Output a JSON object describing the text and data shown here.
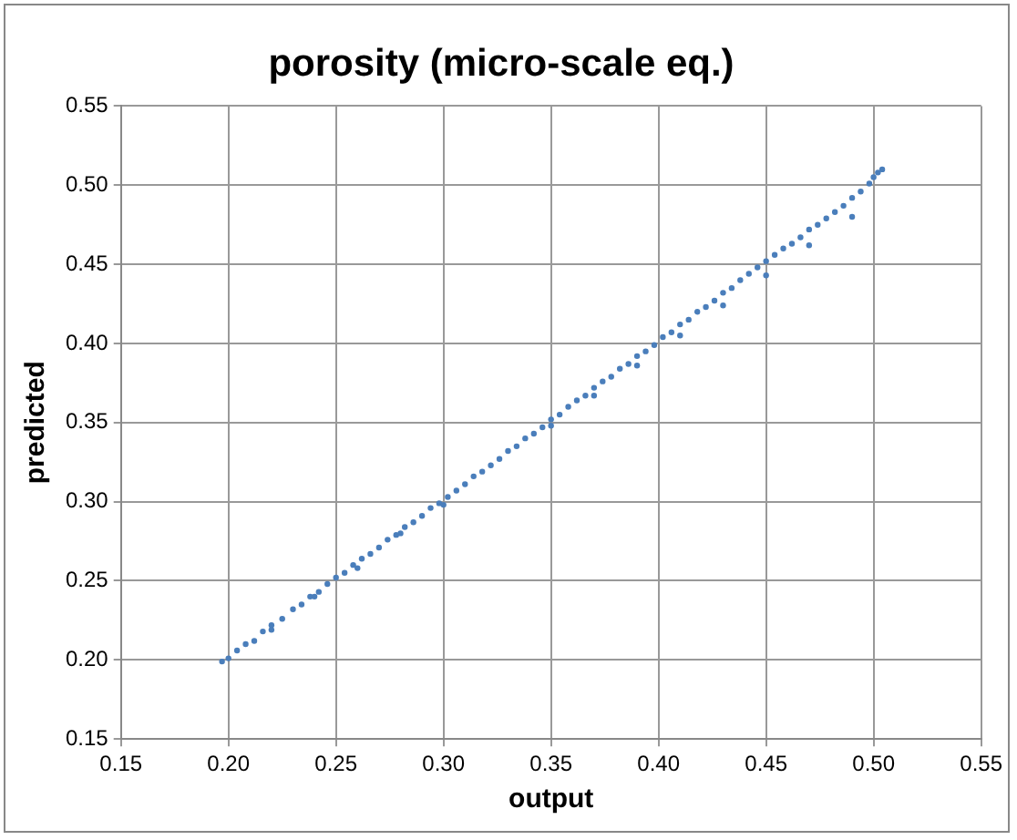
{
  "chart_data": {
    "type": "scatter",
    "title": "porosity (micro-scale eq.)",
    "xlabel": "output",
    "ylabel": "predicted",
    "xlim": [
      0.15,
      0.55
    ],
    "xticks": [
      {
        "value": 0.15,
        "label": "0.15"
      },
      {
        "value": 0.2,
        "label": "0.20"
      },
      {
        "value": 0.25,
        "label": "0.25"
      },
      {
        "value": 0.3,
        "label": "0.30"
      },
      {
        "value": 0.35,
        "label": "0.35"
      },
      {
        "value": 0.4,
        "label": "0.40"
      },
      {
        "value": 0.45,
        "label": "0.45"
      },
      {
        "value": 0.5,
        "label": "0.50"
      },
      {
        "value": 0.55,
        "label": "0.55"
      }
    ],
    "ylim": [
      0.15,
      0.55
    ],
    "yticks": [
      {
        "value": 0.15,
        "label": "0.15"
      },
      {
        "value": 0.2,
        "label": "0.20"
      },
      {
        "value": 0.25,
        "label": "0.25"
      },
      {
        "value": 0.3,
        "label": "0.30"
      },
      {
        "value": 0.35,
        "label": "0.35"
      },
      {
        "value": 0.4,
        "label": "0.40"
      },
      {
        "value": 0.45,
        "label": "0.45"
      },
      {
        "value": 0.5,
        "label": "0.50"
      },
      {
        "value": 0.55,
        "label": "0.55"
      }
    ],
    "grid": true,
    "legend": false,
    "marker": "circle",
    "series": [
      {
        "color": "#4a7ebb",
        "x": [
          0.197,
          0.2,
          0.204,
          0.208,
          0.212,
          0.216,
          0.22,
          0.225,
          0.23,
          0.234,
          0.238,
          0.242,
          0.246,
          0.25,
          0.254,
          0.258,
          0.262,
          0.266,
          0.27,
          0.274,
          0.278,
          0.282,
          0.286,
          0.29,
          0.294,
          0.298,
          0.302,
          0.306,
          0.31,
          0.314,
          0.318,
          0.322,
          0.326,
          0.33,
          0.334,
          0.338,
          0.342,
          0.346,
          0.35,
          0.354,
          0.358,
          0.362,
          0.366,
          0.37,
          0.374,
          0.378,
          0.382,
          0.386,
          0.39,
          0.394,
          0.398,
          0.402,
          0.406,
          0.41,
          0.414,
          0.418,
          0.422,
          0.426,
          0.43,
          0.434,
          0.438,
          0.442,
          0.446,
          0.45,
          0.454,
          0.458,
          0.462,
          0.466,
          0.47,
          0.474,
          0.478,
          0.482,
          0.486,
          0.49,
          0.494,
          0.498,
          0.5,
          0.502,
          0.504,
          0.35,
          0.37,
          0.39,
          0.41,
          0.43,
          0.45,
          0.47,
          0.49,
          0.3,
          0.28,
          0.26,
          0.24,
          0.22
        ],
        "values": [
          0.199,
          0.201,
          0.206,
          0.21,
          0.212,
          0.218,
          0.222,
          0.226,
          0.232,
          0.235,
          0.24,
          0.243,
          0.248,
          0.252,
          0.255,
          0.26,
          0.264,
          0.267,
          0.271,
          0.276,
          0.279,
          0.284,
          0.287,
          0.291,
          0.296,
          0.299,
          0.303,
          0.307,
          0.311,
          0.316,
          0.319,
          0.323,
          0.327,
          0.332,
          0.335,
          0.34,
          0.343,
          0.347,
          0.352,
          0.355,
          0.36,
          0.364,
          0.367,
          0.372,
          0.376,
          0.379,
          0.384,
          0.387,
          0.392,
          0.395,
          0.399,
          0.404,
          0.407,
          0.412,
          0.415,
          0.42,
          0.423,
          0.427,
          0.432,
          0.435,
          0.44,
          0.444,
          0.448,
          0.452,
          0.456,
          0.46,
          0.463,
          0.467,
          0.472,
          0.475,
          0.479,
          0.483,
          0.487,
          0.492,
          0.496,
          0.501,
          0.505,
          0.508,
          0.51,
          0.348,
          0.367,
          0.386,
          0.405,
          0.424,
          0.443,
          0.462,
          0.48,
          0.298,
          0.28,
          0.258,
          0.24,
          0.219
        ]
      }
    ]
  }
}
